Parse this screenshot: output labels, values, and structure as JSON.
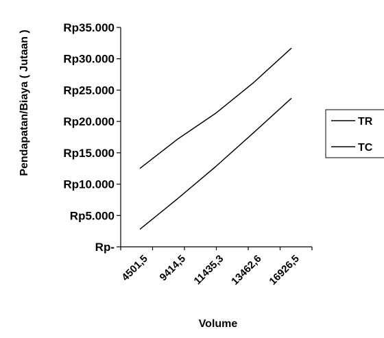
{
  "chart_data": {
    "type": "line",
    "categories": [
      "4501,5",
      "9414,5",
      "11435,3",
      "13462,6",
      "16926,5"
    ],
    "series": [
      {
        "name": "TR",
        "values": [
          12500,
          17200,
          21300,
          26200,
          31700
        ]
      },
      {
        "name": "TC",
        "values": [
          2800,
          7700,
          12800,
          18200,
          23700
        ]
      }
    ],
    "ylim": [
      0,
      35000
    ],
    "y_ticks": [
      {
        "value": 35000,
        "label": "Rp35.000"
      },
      {
        "value": 30000,
        "label": "Rp30.000"
      },
      {
        "value": 25000,
        "label": "Rp25.000"
      },
      {
        "value": 20000,
        "label": "Rp20.000"
      },
      {
        "value": 15000,
        "label": "Rp15.000"
      },
      {
        "value": 10000,
        "label": "Rp10.000"
      },
      {
        "value": 5000,
        "label": "Rp5.000"
      },
      {
        "value": 0,
        "label": "Rp-"
      }
    ],
    "xlabel": "Volume",
    "ylabel": "Pendapatan/Biaya  ( Jutaan )",
    "legend_position": "right",
    "grid": false,
    "line_color": "#000000"
  }
}
